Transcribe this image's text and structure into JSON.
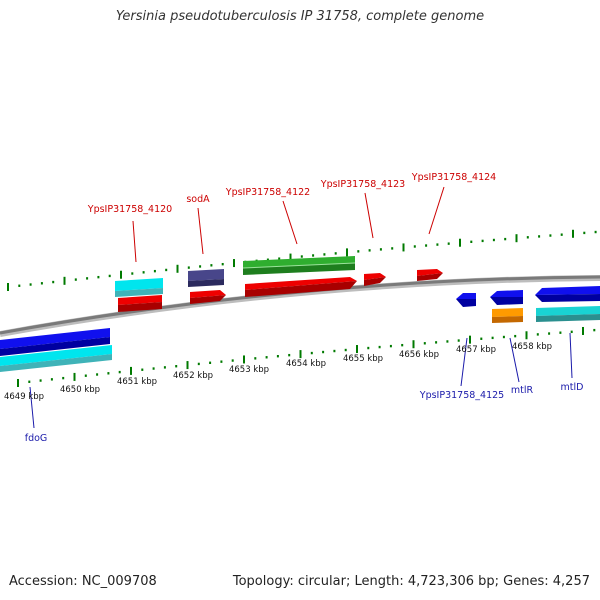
{
  "title": "Yersinia pseudotuberculosis IP 31758, complete genome",
  "footer": {
    "accession_label": "Accession: ",
    "accession": "NC_009708",
    "topology_label": "Topology: ",
    "topology": "circular",
    "length_label": "Length: ",
    "length": "4,723,306 bp",
    "genes_label": "Genes: ",
    "genes": "4,257"
  },
  "colors": {
    "label_forward": "#cc0000",
    "label_reverse": "#1a1aaa",
    "tick": "#007a00",
    "backbone": "#808080"
  },
  "ruler": {
    "unit": "kbp",
    "tick_labels": [
      "4649 kbp",
      "4650 kbp",
      "4651 kbp",
      "4652 kbp",
      "4653 kbp",
      "4654 kbp",
      "4655 kbp",
      "4656 kbp",
      "4657 kbp",
      "4658 kbp"
    ]
  },
  "gene_labels": {
    "forward": [
      {
        "text": "YpsIP31758_4120"
      },
      {
        "text": "sodA"
      },
      {
        "text": "YpsIP31758_4122"
      },
      {
        "text": "YpsIP31758_4123"
      },
      {
        "text": "YpsIP31758_4124"
      }
    ],
    "reverse": [
      {
        "text": "fdoG"
      },
      {
        "text": "YpsIP31758_4125"
      },
      {
        "text": "mtlR"
      },
      {
        "text": "mtlD"
      }
    ]
  }
}
